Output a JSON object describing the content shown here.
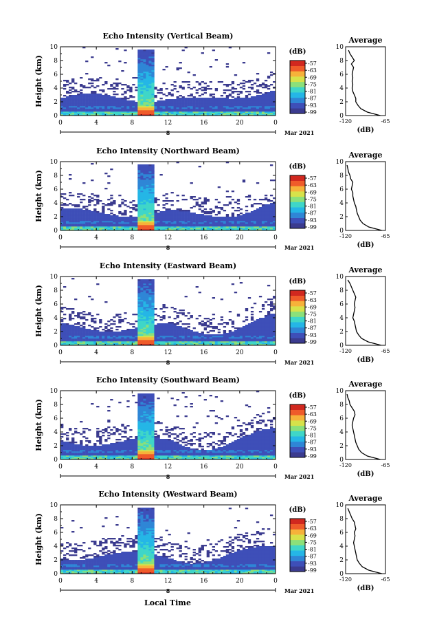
{
  "colors": {
    "background": "#ffffff",
    "colormap": [
      "#3b3b8f",
      "#3e4fb8",
      "#2f86d6",
      "#25b6e6",
      "#3fd6c8",
      "#8be07a",
      "#d7e24a",
      "#f6b23a",
      "#ef5b2a",
      "#d1281f"
    ],
    "average_line": "#000000"
  },
  "figure": {
    "xlabel": "Local Time",
    "date_label": "Mar 2021",
    "day_marker": "8",
    "colorbar_unit": "(dB)",
    "colorbar_labels": [
      "-57",
      "-63",
      "-69",
      "-75",
      "-81",
      "-87",
      "-93",
      "-99"
    ]
  },
  "chart_data": [
    {
      "type": "heatmap",
      "title": "Echo Intensity (Vertical Beam)",
      "ylabel": "Height (km)",
      "x_ticks": [
        "0",
        "4",
        "8",
        "12",
        "16",
        "20",
        "0"
      ],
      "y_ticks": [
        "0",
        "2",
        "4",
        "6",
        "8",
        "10"
      ],
      "xlim": [
        0,
        24
      ],
      "ylim": [
        0,
        10
      ],
      "colorbar": {
        "unit": "(dB)",
        "range": [
          -99,
          -57
        ]
      },
      "side_profile": {
        "title": "Average",
        "xlabel": "(dB)",
        "x_ticks": [
          "-120",
          "-65"
        ],
        "y_ticks": [
          "0",
          "2",
          "4",
          "6",
          "8",
          "10"
        ],
        "height_km": [
          0,
          0.5,
          1,
          1.5,
          2,
          2.5,
          3,
          3.5,
          4,
          4.5,
          5,
          5.5,
          6,
          6.5,
          7,
          7.5,
          8,
          8.5,
          9,
          9.5
        ],
        "avg_db": [
          -72,
          -90,
          -99,
          -103,
          -106,
          -106,
          -108,
          -110,
          -111,
          -110,
          -111,
          -110,
          -111,
          -110,
          -109,
          -112,
          -108,
          -111,
          -114,
          -116
        ]
      }
    },
    {
      "type": "heatmap",
      "title": "Echo Intensity (Northward Beam)",
      "ylabel": "Height (km)",
      "x_ticks": [
        "0",
        "4",
        "8",
        "12",
        "16",
        "20",
        "0"
      ],
      "y_ticks": [
        "0",
        "2",
        "4",
        "6",
        "8",
        "10"
      ],
      "xlim": [
        0,
        24
      ],
      "ylim": [
        0,
        10
      ],
      "colorbar": {
        "unit": "(dB)",
        "range": [
          -99,
          -57
        ]
      },
      "side_profile": {
        "title": "Average",
        "xlabel": "(dB)",
        "x_ticks": [
          "-120",
          "-65"
        ],
        "y_ticks": [
          "0",
          "2",
          "4",
          "6",
          "8",
          "10"
        ],
        "height_km": [
          0,
          0.5,
          1,
          1.5,
          2,
          2.5,
          3,
          3.5,
          4,
          4.5,
          5,
          5.5,
          6,
          6.5,
          7,
          7.5,
          8,
          8.5,
          9,
          9.5
        ],
        "avg_db": [
          -70,
          -88,
          -96,
          -100,
          -102,
          -104,
          -105,
          -106,
          -108,
          -109,
          -110,
          -110,
          -112,
          -111,
          -110,
          -113,
          -114,
          -116,
          -117,
          -118
        ]
      }
    },
    {
      "type": "heatmap",
      "title": "Echo Intensity (Eastward Beam)",
      "ylabel": "Height (km)",
      "x_ticks": [
        "0",
        "4",
        "8",
        "12",
        "16",
        "20",
        "0"
      ],
      "y_ticks": [
        "0",
        "2",
        "4",
        "6",
        "8",
        "10"
      ],
      "xlim": [
        0,
        24
      ],
      "ylim": [
        0,
        10
      ],
      "colorbar": {
        "unit": "(dB)",
        "range": [
          -99,
          -57
        ]
      },
      "side_profile": {
        "title": "Average",
        "xlabel": "(dB)",
        "x_ticks": [
          "-120",
          "-65"
        ],
        "y_ticks": [
          "0",
          "2",
          "4",
          "6",
          "8",
          "10"
        ],
        "height_km": [
          0,
          0.5,
          1,
          1.5,
          2,
          2.5,
          3,
          3.5,
          4,
          4.5,
          5,
          5.5,
          6,
          6.5,
          7,
          7.5,
          8,
          8.5,
          9,
          9.5
        ],
        "avg_db": [
          -71,
          -89,
          -98,
          -102,
          -105,
          -106,
          -107,
          -108,
          -110,
          -109,
          -108,
          -107,
          -108,
          -107,
          -106,
          -108,
          -110,
          -112,
          -114,
          -117
        ]
      }
    },
    {
      "type": "heatmap",
      "title": "Echo Intensity (Southward Beam)",
      "ylabel": "Height (km)",
      "x_ticks": [
        "0",
        "4",
        "8",
        "12",
        "16",
        "20",
        "0"
      ],
      "y_ticks": [
        "0",
        "2",
        "4",
        "6",
        "8",
        "10"
      ],
      "xlim": [
        0,
        24
      ],
      "ylim": [
        0,
        10
      ],
      "colorbar": {
        "unit": "(dB)",
        "range": [
          -99,
          -57
        ]
      },
      "side_profile": {
        "title": "Average",
        "xlabel": "(dB)",
        "x_ticks": [
          "-120",
          "-65"
        ],
        "y_ticks": [
          "0",
          "2",
          "4",
          "6",
          "8",
          "10"
        ],
        "height_km": [
          0,
          0.5,
          1,
          1.5,
          2,
          2.5,
          3,
          3.5,
          4,
          4.5,
          5,
          5.5,
          6,
          6.5,
          7,
          7.5,
          8,
          8.5,
          9,
          9.5
        ],
        "avg_db": [
          -72,
          -90,
          -98,
          -102,
          -104,
          -106,
          -107,
          -108,
          -109,
          -110,
          -111,
          -110,
          -109,
          -107,
          -108,
          -111,
          -114,
          -115,
          -117,
          -118
        ]
      }
    },
    {
      "type": "heatmap",
      "title": "Echo Intensity (Westward Beam)",
      "ylabel": "Height (km)",
      "x_ticks": [
        "0",
        "4",
        "8",
        "12",
        "16",
        "20",
        "0"
      ],
      "y_ticks": [
        "0",
        "2",
        "4",
        "6",
        "8",
        "10"
      ],
      "xlim": [
        0,
        24
      ],
      "ylim": [
        0,
        10
      ],
      "colorbar": {
        "unit": "(dB)",
        "range": [
          -99,
          -57
        ]
      },
      "side_profile": {
        "title": "Average",
        "xlabel": "(dB)",
        "x_ticks": [
          "-120",
          "-65"
        ],
        "y_ticks": [
          "0",
          "2",
          "4",
          "6",
          "8",
          "10"
        ],
        "height_km": [
          0,
          0.5,
          1,
          1.5,
          2,
          2.5,
          3,
          3.5,
          4,
          4.5,
          5,
          5.5,
          6,
          6.5,
          7,
          7.5,
          8,
          8.5,
          9,
          9.5
        ],
        "avg_db": [
          -70,
          -88,
          -97,
          -101,
          -104,
          -105,
          -106,
          -107,
          -108,
          -109,
          -108,
          -107,
          -108,
          -106,
          -107,
          -108,
          -111,
          -113,
          -115,
          -117
        ]
      }
    }
  ]
}
